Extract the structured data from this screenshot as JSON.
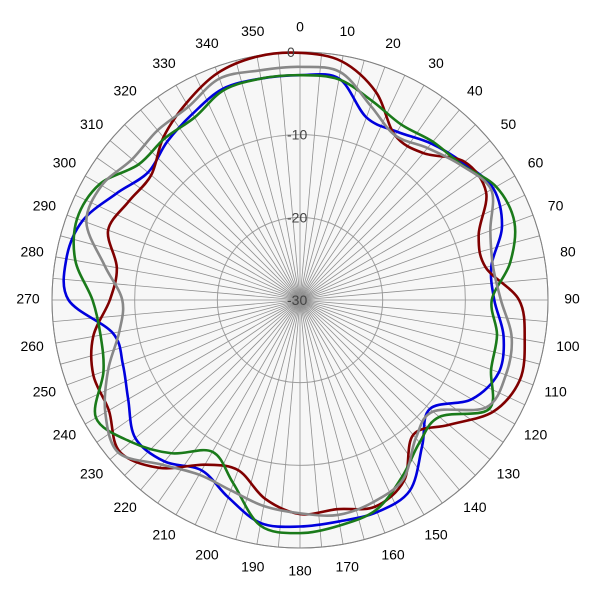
{
  "chart_data": {
    "type": "polar-line",
    "title": "",
    "r_range": [
      -30,
      0
    ],
    "r_ticks": [
      "0",
      "-10",
      "-20",
      "-30"
    ],
    "r_tick_values": [
      0,
      -10,
      -20,
      -30
    ],
    "angle_tick_labels": [
      "0",
      "10",
      "20",
      "30",
      "40",
      "50",
      "60",
      "70",
      "80",
      "90",
      "100",
      "110",
      "120",
      "130",
      "140",
      "150",
      "160",
      "170",
      "180",
      "190",
      "200",
      "210",
      "220",
      "230",
      "240",
      "250",
      "260",
      "270",
      "280",
      "290",
      "300",
      "310",
      "320",
      "330",
      "340",
      "350"
    ],
    "angle_tick_values": [
      0,
      10,
      20,
      30,
      40,
      50,
      60,
      70,
      80,
      90,
      100,
      110,
      120,
      130,
      140,
      150,
      160,
      170,
      180,
      190,
      200,
      210,
      220,
      230,
      240,
      250,
      260,
      270,
      280,
      290,
      300,
      310,
      320,
      330,
      340,
      350
    ],
    "grid": true,
    "legend": "none",
    "angle_direction": "clockwise",
    "zero_angle": "top",
    "series": [
      {
        "color": "#0000dd",
        "angles": [
          0,
          10,
          20,
          30,
          40,
          50,
          60,
          70,
          80,
          90,
          100,
          110,
          120,
          130,
          140,
          150,
          160,
          170,
          180,
          190,
          200,
          210,
          220,
          230,
          240,
          250,
          260,
          270,
          280,
          290,
          300,
          310,
          320,
          330,
          340,
          350
        ],
        "values": [
          -2.8,
          -2.8,
          -6.5,
          -6.5,
          -5.3,
          -4.2,
          -3,
          -4,
          -6.5,
          -6.5,
          -5,
          -4.4,
          -6,
          -9.5,
          -7,
          -3.4,
          -2.7,
          -2.8,
          -2.6,
          -2.6,
          -4.6,
          -6.2,
          -4.5,
          -4,
          -6,
          -7.2,
          -7,
          -2,
          -1.3,
          -2,
          -4.3,
          -6,
          -5,
          -4,
          -2.8,
          -2.8
        ]
      },
      {
        "color": "#800000",
        "angles": [
          0,
          10,
          20,
          30,
          40,
          50,
          60,
          70,
          80,
          90,
          100,
          110,
          120,
          130,
          140,
          150,
          160,
          170,
          180,
          190,
          200,
          210,
          220,
          230,
          240,
          250,
          260,
          270,
          280,
          290,
          300,
          310,
          320,
          330,
          340,
          350
        ],
        "values": [
          -0.1,
          -0.7,
          -3.2,
          -7,
          -6.8,
          -4,
          -4,
          -7,
          -7.2,
          -3.5,
          -2.4,
          -1.7,
          -3,
          -6.5,
          -8.7,
          -4.8,
          -3.4,
          -4.3,
          -4.1,
          -5.6,
          -8.1,
          -7,
          -3.5,
          -1.5,
          -3.3,
          -3.4,
          -4.6,
          -7,
          -7.5,
          -5.3,
          -6.1,
          -6.5,
          -4.3,
          -2.5,
          -0.8,
          -0.1
        ]
      },
      {
        "color": "#1a7a1a",
        "angles": [
          0,
          10,
          20,
          30,
          40,
          50,
          60,
          70,
          80,
          90,
          100,
          110,
          120,
          130,
          140,
          150,
          160,
          170,
          180,
          190,
          200,
          210,
          220,
          230,
          240,
          250,
          260,
          270,
          280,
          290,
          300,
          310,
          320,
          330,
          340,
          350
        ],
        "values": [
          -2.8,
          -2.9,
          -4.4,
          -5.5,
          -5,
          -4.5,
          -2.6,
          -2.4,
          -4.2,
          -6.8,
          -5.8,
          -5.4,
          -3.6,
          -8,
          -7.5,
          -5.3,
          -3,
          -2.3,
          -1.8,
          -2.3,
          -6.4,
          -8.8,
          -5.8,
          -3.3,
          -1.5,
          -4.7,
          -5.5,
          -4.9,
          -2.4,
          -1.3,
          -2,
          -4.5,
          -4.5,
          -4.5,
          -3,
          -2.8
        ]
      },
      {
        "color": "#888888",
        "angles": [
          0,
          10,
          20,
          30,
          40,
          50,
          60,
          70,
          80,
          90,
          100,
          110,
          120,
          130,
          140,
          150,
          160,
          170,
          180,
          190,
          200,
          210,
          220,
          230,
          240,
          250,
          260,
          270,
          280,
          290,
          300,
          310,
          320,
          330,
          340,
          350
        ],
        "values": [
          -1.8,
          -2,
          -5,
          -7,
          -6,
          -4.6,
          -3.3,
          -5.5,
          -6.3,
          -5.7,
          -4,
          -3.5,
          -4,
          -9,
          -8.2,
          -5,
          -4,
          -3.6,
          -4.2,
          -4.7,
          -5.5,
          -5.6,
          -4,
          -1.3,
          -2.8,
          -5.3,
          -7.8,
          -8.5,
          -6,
          -2.5,
          -2.3,
          -3.5,
          -3.2,
          -3,
          -1.5,
          -1.8
        ]
      }
    ]
  }
}
